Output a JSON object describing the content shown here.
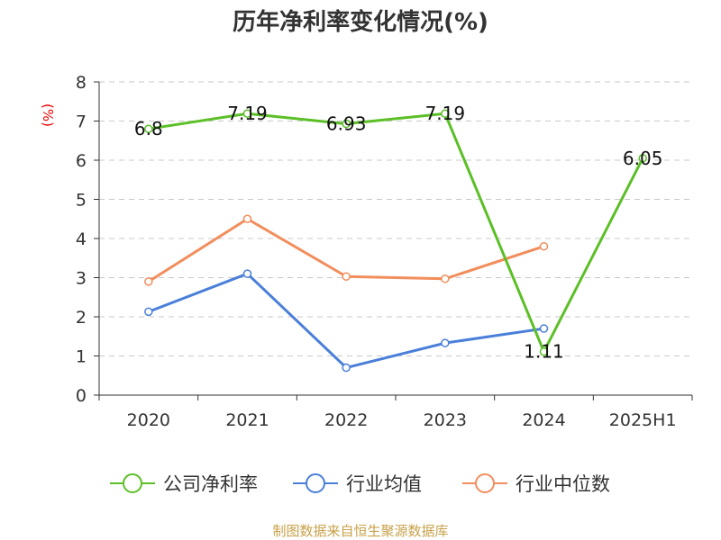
{
  "chart_data": {
    "type": "line",
    "title": "历年净利率变化情况(%)",
    "ylabel": "(%)",
    "categories": [
      "2020",
      "2021",
      "2022",
      "2023",
      "2024",
      "2025H1"
    ],
    "ylim": [
      0,
      8
    ],
    "yticks": [
      0,
      1,
      2,
      3,
      4,
      5,
      6,
      7,
      8
    ],
    "grid": true,
    "legend_position": "bottom",
    "series": [
      {
        "name": "公司净利率",
        "color": "#5cbf27",
        "values": [
          6.8,
          7.19,
          6.93,
          7.19,
          1.11,
          6.05
        ],
        "labels": [
          "6.8",
          "7.19",
          "6.93",
          "7.19",
          "1.11",
          "6.05"
        ]
      },
      {
        "name": "行业均值",
        "color": "#4a7fd9",
        "values": [
          2.13,
          3.1,
          0.7,
          1.33,
          1.7,
          null
        ]
      },
      {
        "name": "行业中位数",
        "color": "#f28d5c",
        "values": [
          2.9,
          4.5,
          3.03,
          2.97,
          3.8,
          null
        ]
      }
    ],
    "source": "制图数据来自恒生聚源数据库"
  }
}
